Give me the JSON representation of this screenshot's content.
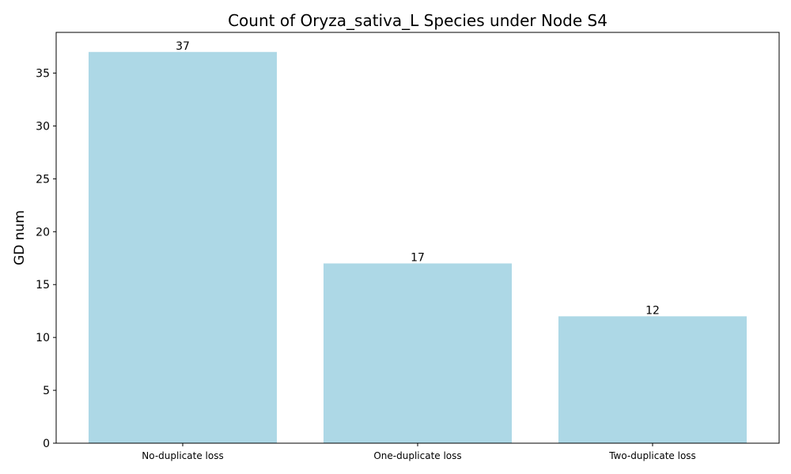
{
  "chart_data": {
    "type": "bar",
    "title": "Count of Oryza_sativa_L Species under Node S4",
    "xlabel": "",
    "ylabel": "GD num",
    "categories": [
      "No-duplicate loss",
      "One-duplicate loss",
      "Two-duplicate loss"
    ],
    "values": [
      37,
      17,
      12
    ],
    "ylim": [
      0,
      38.85
    ],
    "yticks": [
      0,
      5,
      10,
      15,
      20,
      25,
      30,
      35
    ],
    "grid": false,
    "legend": "none",
    "bar_color": "#add8e6"
  }
}
